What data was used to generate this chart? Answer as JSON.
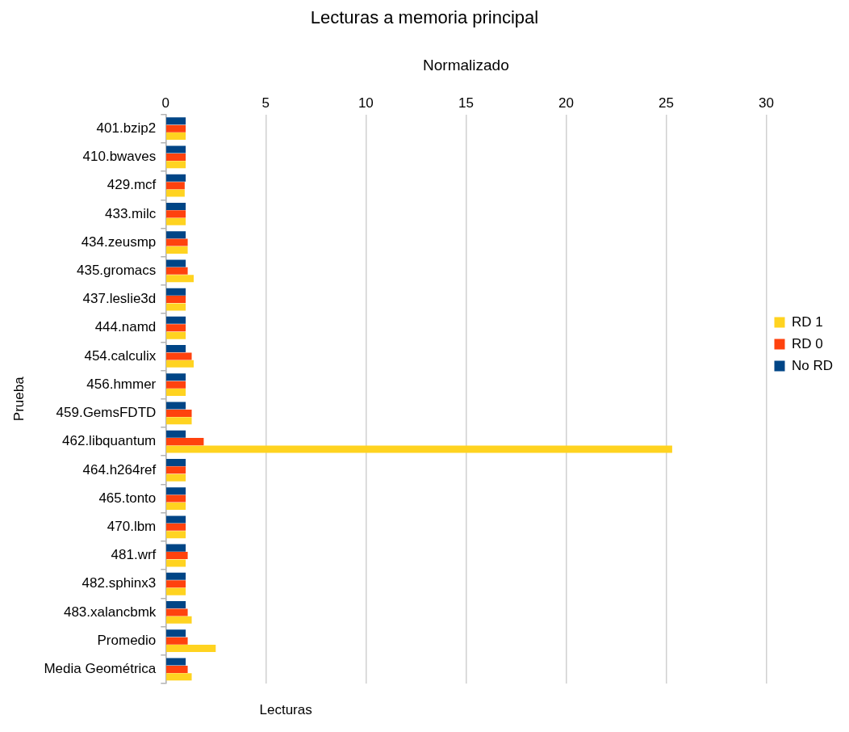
{
  "chart_data": {
    "type": "bar",
    "orientation": "horizontal",
    "title": "Lecturas a memoria principal",
    "xlabel": "Normalizado",
    "ylabel": "Prueba",
    "annotations": [
      "Lecturas"
    ],
    "categories": [
      "401.bzip2",
      "410.bwaves",
      "429.mcf",
      "433.milc",
      "434.zeusmp",
      "435.gromacs",
      "437.leslie3d",
      "444.namd",
      "454.calculix",
      "456.hmmer",
      "459.GemsFDTD",
      "462.libquantum",
      "464.h264ref",
      "465.tonto",
      "470.lbm",
      "481.wrf",
      "482.sphinx3",
      "483.xalancbmk",
      "Promedio",
      "Media Geométrica"
    ],
    "series": [
      {
        "name": "No RD",
        "color": "#004586",
        "values": [
          1,
          1,
          1,
          1,
          1,
          1,
          1,
          1,
          1,
          1,
          1,
          1,
          1,
          1,
          1,
          1,
          1,
          1,
          1,
          1
        ]
      },
      {
        "name": "RD 0",
        "color": "#ff420e",
        "values": [
          1,
          1,
          0.95,
          1,
          1.1,
          1.1,
          1,
          1,
          1.3,
          1,
          1.3,
          1.9,
          1,
          1,
          1,
          1.1,
          1,
          1.1,
          1.1,
          1.1
        ]
      },
      {
        "name": "RD 1",
        "color": "#ffd320",
        "values": [
          1,
          1,
          0.95,
          1,
          1.1,
          1.4,
          1,
          1,
          1.4,
          1,
          1.3,
          25.3,
          1,
          1,
          1,
          1,
          1,
          1.3,
          2.5,
          1.3
        ]
      }
    ],
    "xlim": [
      0,
      30
    ],
    "xticks": [
      0,
      5,
      10,
      15,
      20,
      25,
      30
    ],
    "grid": "x",
    "legend": "right"
  }
}
